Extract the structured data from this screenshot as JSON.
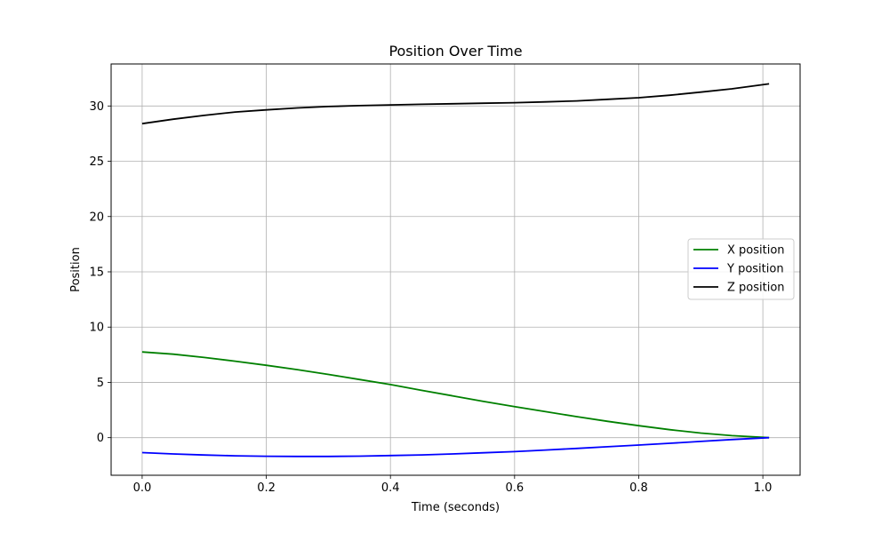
{
  "chart_data": {
    "type": "line",
    "title": "Position Over Time",
    "xlabel": "Time (seconds)",
    "ylabel": "Position",
    "xlim": [
      -0.05,
      1.06
    ],
    "ylim": [
      -3.4,
      33.8
    ],
    "xticks": [
      0.0,
      0.2,
      0.4,
      0.6,
      0.8,
      1.0
    ],
    "xtick_labels": [
      "0.0",
      "0.2",
      "0.4",
      "0.6",
      "0.8",
      "1.0"
    ],
    "yticks": [
      0,
      5,
      10,
      15,
      20,
      25,
      30
    ],
    "ytick_labels": [
      "0",
      "5",
      "10",
      "15",
      "20",
      "25",
      "30"
    ],
    "grid": true,
    "legend_position": "center-right",
    "series": [
      {
        "name": "X position",
        "color": "#008000",
        "x": [
          0.0,
          0.05,
          0.1,
          0.15,
          0.2,
          0.25,
          0.3,
          0.35,
          0.4,
          0.45,
          0.5,
          0.55,
          0.6,
          0.65,
          0.7,
          0.75,
          0.8,
          0.85,
          0.9,
          0.95,
          1.01
        ],
        "y": [
          7.75,
          7.55,
          7.25,
          6.92,
          6.55,
          6.15,
          5.72,
          5.26,
          4.8,
          4.28,
          3.78,
          3.28,
          2.8,
          2.35,
          1.9,
          1.48,
          1.08,
          0.72,
          0.42,
          0.18,
          0.0
        ]
      },
      {
        "name": "Y position",
        "color": "#0000ff",
        "x": [
          0.0,
          0.05,
          0.1,
          0.15,
          0.2,
          0.25,
          0.3,
          0.35,
          0.4,
          0.45,
          0.5,
          0.55,
          0.6,
          0.65,
          0.7,
          0.75,
          0.8,
          0.85,
          0.9,
          0.95,
          1.01
        ],
        "y": [
          -1.35,
          -1.47,
          -1.57,
          -1.64,
          -1.68,
          -1.7,
          -1.7,
          -1.67,
          -1.62,
          -1.56,
          -1.47,
          -1.37,
          -1.26,
          -1.12,
          -0.97,
          -0.82,
          -0.67,
          -0.51,
          -0.34,
          -0.17,
          0.0
        ]
      },
      {
        "name": "Z position",
        "color": "#000000",
        "x": [
          0.0,
          0.05,
          0.1,
          0.15,
          0.2,
          0.25,
          0.3,
          0.35,
          0.4,
          0.45,
          0.5,
          0.55,
          0.6,
          0.65,
          0.7,
          0.75,
          0.8,
          0.85,
          0.9,
          0.95,
          1.01
        ],
        "y": [
          28.4,
          28.8,
          29.15,
          29.45,
          29.65,
          29.82,
          29.95,
          30.03,
          30.1,
          30.15,
          30.2,
          30.25,
          30.3,
          30.37,
          30.46,
          30.6,
          30.75,
          30.97,
          31.25,
          31.55,
          32.0
        ]
      }
    ]
  }
}
